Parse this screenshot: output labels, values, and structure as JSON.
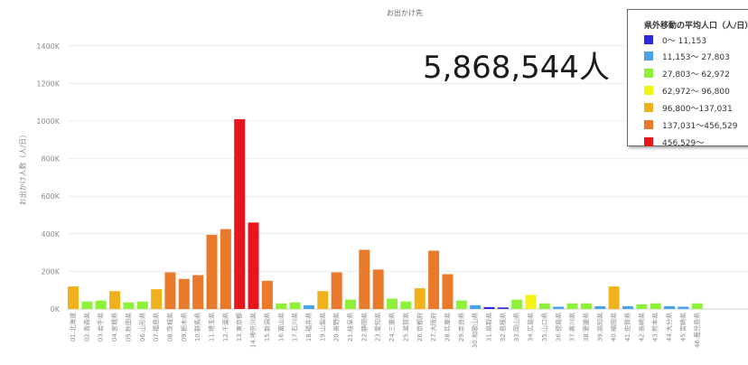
{
  "total_label": "5,868,544人",
  "legend": {
    "title": "県外移動の平均人口（人/日）",
    "items": [
      {
        "label": "0～ 11,153",
        "color": "#2b2bdb"
      },
      {
        "label": "11,153～ 27,803",
        "color": "#4aa3e8"
      },
      {
        "label": "27,803～ 62,972",
        "color": "#8ef03a"
      },
      {
        "label": "62,972～ 96,800",
        "color": "#f3f315"
      },
      {
        "label": "96,800～137,031",
        "color": "#f0b21c"
      },
      {
        "label": "137,031～456,529",
        "color": "#ea7a2b"
      },
      {
        "label": "456,529～",
        "color": "#e8161a"
      }
    ]
  },
  "chart_data": {
    "type": "bar",
    "title": "お出かけ先",
    "ylabel": "お出かけ人数（人/日）",
    "xlabel": "",
    "ylim": [
      0,
      1500000
    ],
    "yticks": [
      0,
      200000,
      400000,
      600000,
      800000,
      1000000,
      1200000,
      1400000
    ],
    "ytick_labels": [
      "0K",
      "200K",
      "400K",
      "600K",
      "800K",
      "1000K",
      "1200K",
      "1400K"
    ],
    "categories": [
      "01.北海道",
      "02.青森県",
      "03.岩手県",
      "04.宮城県",
      "05.秋田県",
      "06.山形県",
      "07.福島県",
      "08.茨城県",
      "09.栃木県",
      "10.群馬県",
      "11.埼玉県",
      "12.千葉県",
      "13.東京都",
      "14.神奈川県",
      "15.新潟県",
      "16.富山県",
      "17.石川県",
      "18.福井県",
      "19.山梨県",
      "20.長野県",
      "21.岐阜県",
      "22.静岡県",
      "23.愛知県",
      "24.三重県",
      "25.滋賀県",
      "26.京都府",
      "27.大阪府",
      "28.兵庫県",
      "29.奈良県",
      "30.和歌山県",
      "31.鳥取県",
      "32.島根県",
      "33.岡山県",
      "34.広島県",
      "35.山口県",
      "36.徳島県",
      "37.香川県",
      "38.愛媛県",
      "39.高知県",
      "40.福岡県",
      "41.佐賀県",
      "42.長崎県",
      "43.熊本県",
      "44.大分県",
      "45.宮崎県",
      "46.鹿児島県"
    ],
    "values": [
      120000,
      40000,
      45000,
      95000,
      35000,
      40000,
      105000,
      195000,
      160000,
      180000,
      395000,
      425000,
      1010000,
      460000,
      150000,
      30000,
      35000,
      20000,
      95000,
      195000,
      50000,
      315000,
      210000,
      55000,
      40000,
      110000,
      310000,
      185000,
      45000,
      20000,
      10000,
      8000,
      50000,
      75000,
      30000,
      12000,
      30000,
      30000,
      15000,
      120000,
      15000,
      25000,
      30000,
      15000,
      12000,
      30000
    ],
    "colors": [
      "#f0b21c",
      "#8ef03a",
      "#8ef03a",
      "#f0b21c",
      "#8ef03a",
      "#8ef03a",
      "#f0b21c",
      "#ea7a2b",
      "#ea7a2b",
      "#ea7a2b",
      "#ea7a2b",
      "#ea7a2b",
      "#e8161a",
      "#e8161a",
      "#ea7a2b",
      "#8ef03a",
      "#8ef03a",
      "#4aa3e8",
      "#f0b21c",
      "#ea7a2b",
      "#8ef03a",
      "#ea7a2b",
      "#ea7a2b",
      "#8ef03a",
      "#8ef03a",
      "#f0b21c",
      "#ea7a2b",
      "#ea7a2b",
      "#8ef03a",
      "#4aa3e8",
      "#2b2bdb",
      "#2b2bdb",
      "#8ef03a",
      "#f3f315",
      "#8ef03a",
      "#4aa3e8",
      "#8ef03a",
      "#8ef03a",
      "#4aa3e8",
      "#f0b21c",
      "#4aa3e8",
      "#8ef03a",
      "#8ef03a",
      "#4aa3e8",
      "#4aa3e8",
      "#8ef03a"
    ],
    "grid": true,
    "legend_position": "top-right"
  }
}
